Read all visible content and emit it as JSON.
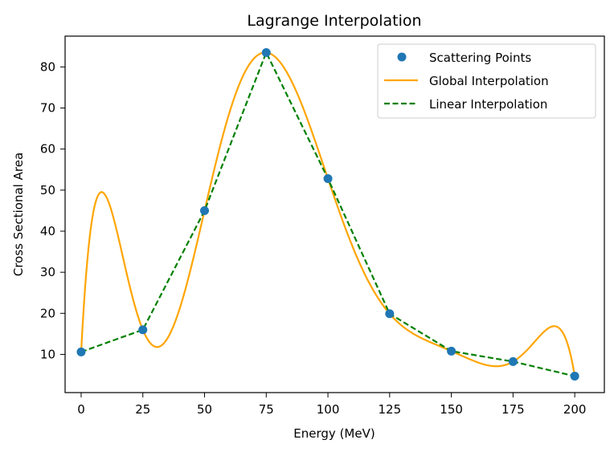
{
  "chart_data": {
    "type": "line",
    "title": "Lagrange Interpolation",
    "xlabel": "Energy (MeV)",
    "ylabel": "Cross Sectional Area",
    "xlim": [
      -6.5,
      212
    ],
    "ylim": [
      0.7,
      87.5
    ],
    "xticks": [
      0,
      25,
      50,
      75,
      100,
      125,
      150,
      175,
      200
    ],
    "yticks": [
      10,
      20,
      30,
      40,
      50,
      60,
      70,
      80
    ],
    "grid": false,
    "legend_position": "top-right",
    "x": [
      0,
      25,
      50,
      75,
      100,
      125,
      150,
      175,
      200
    ],
    "series": [
      {
        "name": "Scattering Points",
        "style": "markers",
        "color": "#1f77b4",
        "values": [
          10.6,
          16.0,
          45.0,
          83.5,
          52.8,
          19.9,
          10.8,
          8.25,
          4.7
        ]
      },
      {
        "name": "Global Interpolation",
        "style": "solid",
        "color": "#ffa500",
        "values": [
          10.6,
          16.0,
          45.0,
          83.5,
          52.8,
          19.9,
          10.8,
          8.25,
          4.7
        ]
      },
      {
        "name": "Linear Interpolation",
        "style": "dashed",
        "color": "#008000",
        "values": [
          10.6,
          16.0,
          45.0,
          83.5,
          52.8,
          19.9,
          10.8,
          8.25,
          4.7
        ]
      }
    ]
  }
}
